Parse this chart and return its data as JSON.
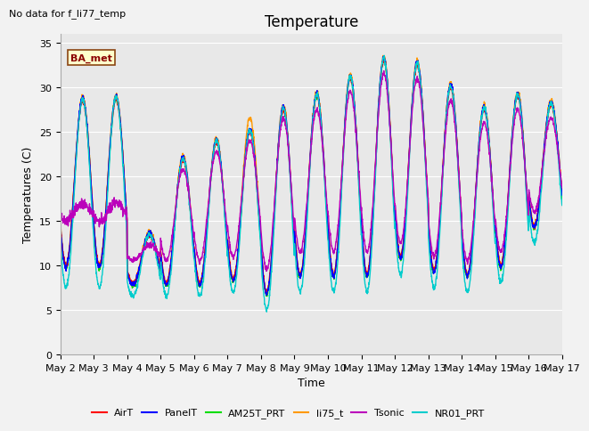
{
  "title": "Temperature",
  "ylabel": "Temperatures (C)",
  "xlabel": "Time",
  "annotation": "No data for f_li77_temp",
  "legend_label": "BA_met",
  "ylim": [
    0,
    36
  ],
  "yticks": [
    0,
    5,
    10,
    15,
    20,
    25,
    30,
    35
  ],
  "num_days": 15,
  "series": {
    "AirT": {
      "color": "#ff0000",
      "lw": 1.0
    },
    "PanelT": {
      "color": "#0000ff",
      "lw": 1.0
    },
    "AM25T_PRT": {
      "color": "#00dd00",
      "lw": 1.0
    },
    "li75_t": {
      "color": "#ff9900",
      "lw": 1.0
    },
    "Tsonic": {
      "color": "#bb00bb",
      "lw": 1.0
    },
    "NR01_PRT": {
      "color": "#00cccc",
      "lw": 1.0
    }
  },
  "background_color": "#e8e8e8",
  "outer_background": "#f2f2f2",
  "grid_color": "#ffffff",
  "title_fontsize": 12,
  "label_fontsize": 9,
  "tick_fontsize": 8,
  "x_tick_labels": [
    "May 2",
    "May 3",
    "May 4",
    "May 5",
    "May 6",
    "May 7",
    "May 8",
    "May 9",
    "May 10",
    "May 11",
    "May 12",
    "May 13",
    "May 14",
    "May 15",
    "May 16",
    "May 17"
  ],
  "day_peaks_base": [
    28.5,
    28.7,
    13.3,
    21.8,
    23.8,
    25.0,
    27.5,
    29.0,
    31.0,
    33.0,
    32.5,
    30.0,
    27.5,
    29.0,
    28.0
  ],
  "day_mins_base": [
    9.5,
    9.5,
    7.5,
    7.5,
    7.5,
    8.0,
    6.5,
    8.5,
    8.5,
    8.5,
    10.5,
    9.0,
    8.5,
    9.5,
    14.0
  ],
  "peak_offsets": {
    "AirT": [
      0.0,
      0.0,
      0.0,
      0.0,
      0.0,
      0.0,
      0.0,
      0.0,
      0.0,
      0.0,
      0.0,
      0.0,
      0.0,
      0.0,
      0.0
    ],
    "PanelT": [
      0.3,
      0.3,
      0.3,
      0.3,
      0.3,
      0.3,
      0.3,
      0.3,
      0.3,
      0.3,
      0.3,
      0.3,
      0.3,
      0.3,
      0.3
    ],
    "AM25T_PRT": [
      0.1,
      0.1,
      0.1,
      0.1,
      0.1,
      0.1,
      0.1,
      0.1,
      0.1,
      0.1,
      0.1,
      0.1,
      0.1,
      0.1,
      0.1
    ],
    "li75_t": [
      0.5,
      0.5,
      0.5,
      0.5,
      0.5,
      1.5,
      0.5,
      0.5,
      0.5,
      0.5,
      0.5,
      0.5,
      0.5,
      0.5,
      0.5
    ],
    "Tsonic": [
      -2.0,
      -2.0,
      -1.0,
      -1.0,
      -1.0,
      -1.0,
      -1.0,
      -1.5,
      -1.5,
      -1.5,
      -1.5,
      -1.5,
      -1.5,
      -1.5,
      -1.5
    ],
    "NR01_PRT": [
      0.2,
      0.2,
      0.2,
      0.2,
      0.2,
      0.2,
      0.2,
      0.2,
      0.2,
      0.2,
      0.2,
      0.2,
      0.2,
      0.2,
      0.2
    ]
  },
  "min_offsets": {
    "AirT": [
      0.5,
      0.5,
      0.5,
      0.5,
      0.5,
      0.5,
      0.5,
      0.5,
      0.5,
      0.5,
      0.5,
      0.5,
      0.5,
      0.5,
      0.5
    ],
    "PanelT": [
      0.3,
      0.3,
      0.3,
      0.3,
      0.3,
      0.3,
      0.3,
      0.3,
      0.3,
      0.3,
      0.3,
      0.3,
      0.3,
      0.3,
      0.3
    ],
    "AM25T_PRT": [
      0.2,
      0.2,
      0.2,
      0.2,
      0.2,
      0.2,
      0.2,
      0.2,
      0.2,
      0.2,
      0.2,
      0.2,
      0.2,
      0.2,
      0.2
    ],
    "li75_t": [
      0.5,
      0.5,
      0.5,
      0.5,
      0.5,
      0.5,
      0.5,
      0.5,
      0.5,
      0.5,
      0.5,
      0.5,
      0.5,
      0.5,
      0.5
    ],
    "Tsonic": [
      4.0,
      4.0,
      3.0,
      3.0,
      3.0,
      3.0,
      3.0,
      3.0,
      3.0,
      3.0,
      2.0,
      2.0,
      2.0,
      2.0,
      2.0
    ],
    "NR01_PRT": [
      -2.0,
      -2.0,
      -1.0,
      -1.0,
      -1.0,
      -1.0,
      -1.5,
      -1.5,
      -1.5,
      -1.5,
      -1.5,
      -1.5,
      -1.5,
      -1.5,
      -1.5
    ]
  }
}
